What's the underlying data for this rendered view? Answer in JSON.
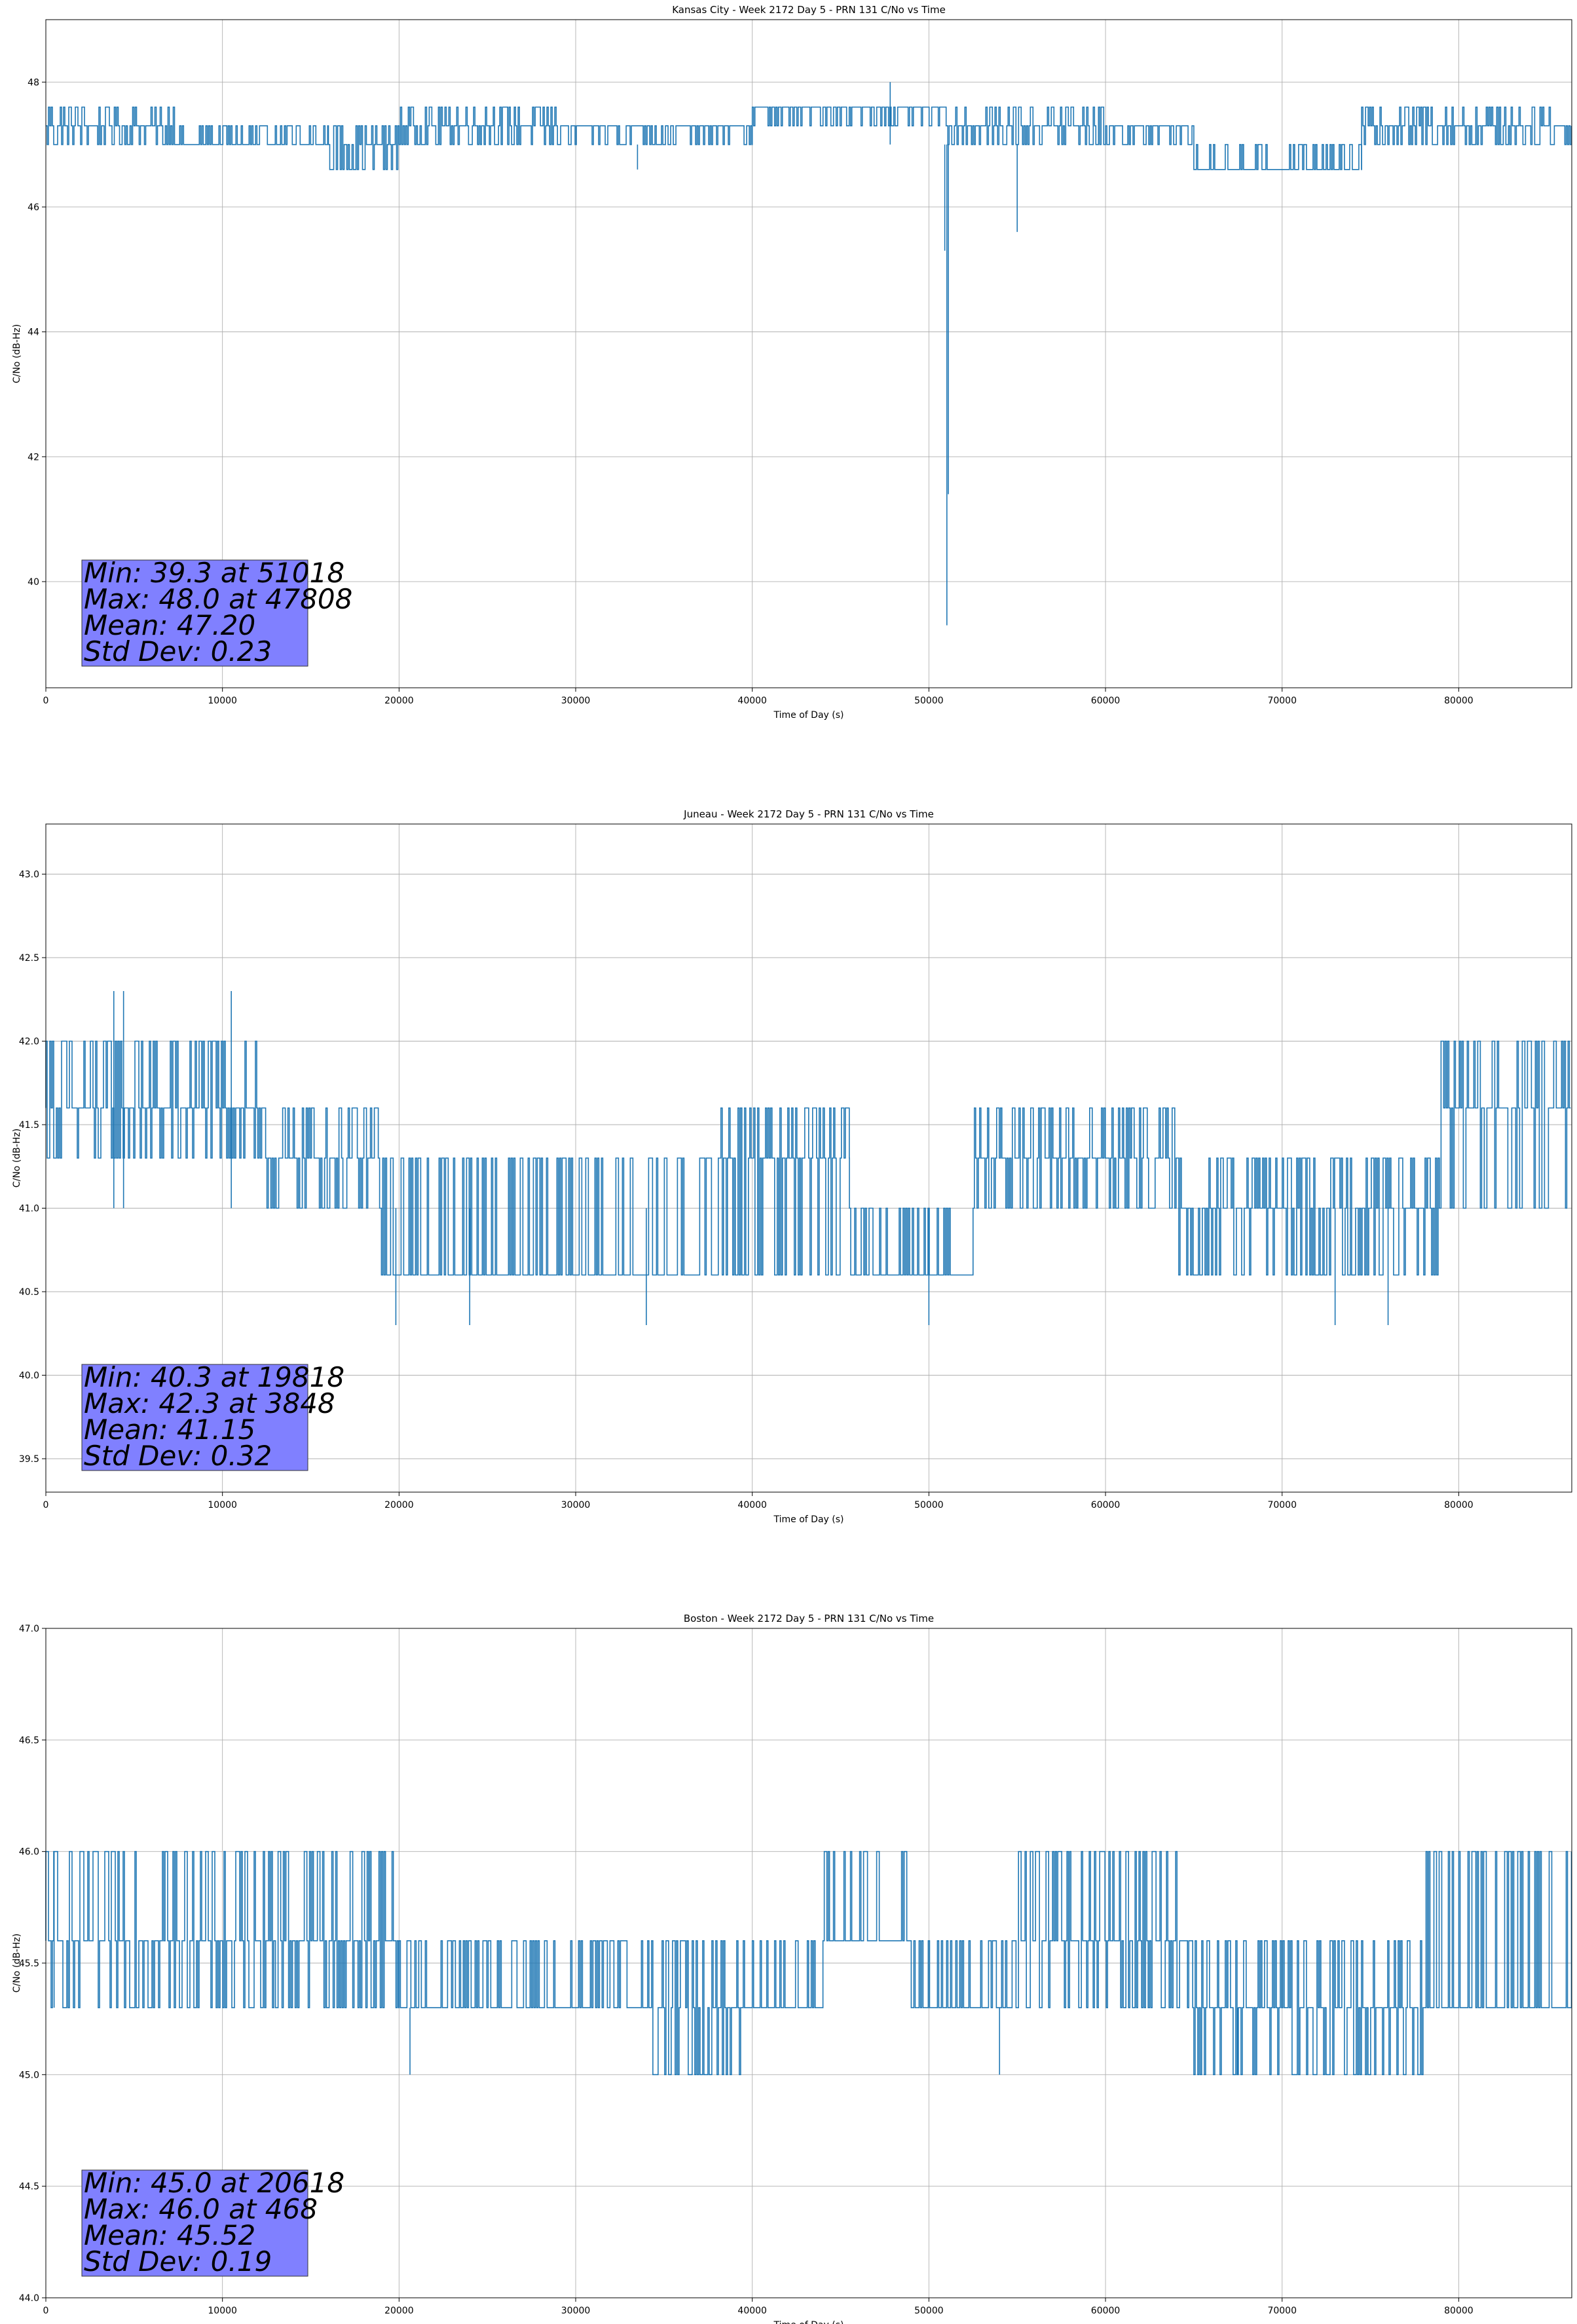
{
  "chart_data": [
    {
      "type": "line",
      "title": "Kansas City - Week 2172 Day 5 - PRN 131 C/No vs Time",
      "xlabel": "Time of Day (s)",
      "ylabel": "C/No (dB-Hz)",
      "xlim": [
        0,
        86400
      ],
      "ylim": [
        38.3,
        49.0
      ],
      "xticks": [
        0,
        10000,
        20000,
        30000,
        40000,
        50000,
        60000,
        70000,
        80000
      ],
      "yticks": [
        "40",
        "42",
        "44",
        "46",
        "48"
      ],
      "grid": true,
      "color": "#1f77b4",
      "levels": [
        46.6,
        47.0,
        47.3,
        47.6
      ],
      "regimes": [
        {
          "x": [
            0,
            1000
          ],
          "base": 47.3,
          "lo": 47.0,
          "hi": 47.6
        },
        {
          "x": [
            1000,
            3800
          ],
          "base": 47.3,
          "lo": 47.0,
          "hi": 47.6
        },
        {
          "x": [
            3800,
            7500
          ],
          "base": 47.3,
          "lo": 47.0,
          "hi": 47.6
        },
        {
          "x": [
            7500,
            16000
          ],
          "base": 47.0,
          "lo": 47.0,
          "hi": 47.3
        },
        {
          "x": [
            16000,
            20000
          ],
          "base": 47.0,
          "lo": 46.6,
          "hi": 47.3
        },
        {
          "x": [
            20000,
            24000
          ],
          "base": 47.3,
          "lo": 47.0,
          "hi": 47.6
        },
        {
          "x": [
            24000,
            29000
          ],
          "base": 47.3,
          "lo": 47.0,
          "hi": 47.6
        },
        {
          "x": [
            29000,
            40000
          ],
          "base": 47.3,
          "lo": 47.0,
          "hi": 47.3
        },
        {
          "x": [
            40000,
            51000
          ],
          "base": 47.6,
          "lo": 47.3,
          "hi": 47.6
        },
        {
          "x": [
            51000,
            60000
          ],
          "base": 47.3,
          "lo": 47.0,
          "hi": 47.6
        },
        {
          "x": [
            60000,
            65000
          ],
          "base": 47.3,
          "lo": 47.0,
          "hi": 47.3
        },
        {
          "x": [
            65000,
            74500
          ],
          "base": 46.6,
          "lo": 46.6,
          "hi": 47.0
        },
        {
          "x": [
            74500,
            80000
          ],
          "base": 47.3,
          "lo": 47.0,
          "hi": 47.6
        },
        {
          "x": [
            80000,
            86400
          ],
          "base": 47.3,
          "lo": 47.0,
          "hi": 47.6
        }
      ],
      "spikes": [
        {
          "x": 47808,
          "y": 48.0
        },
        {
          "x": 51018,
          "y": 39.3
        },
        {
          "x": 51100,
          "y": 41.4
        },
        {
          "x": 50900,
          "y": 45.3
        },
        {
          "x": 55000,
          "y": 45.6
        },
        {
          "x": 33500,
          "y": 46.6
        }
      ],
      "stats": {
        "min": "Min: 39.3 at 51018",
        "max": "Max: 48.0 at 47808",
        "mean": "Mean: 47.20",
        "std": "Std Dev: 0.23"
      }
    },
    {
      "type": "line",
      "title": "Juneau - Week 2172 Day 5 - PRN 131 C/No vs Time",
      "xlabel": "Time of Day (s)",
      "ylabel": "C/No (dB-Hz)",
      "xlim": [
        0,
        86400
      ],
      "ylim": [
        39.3,
        43.3
      ],
      "xticks": [
        0,
        10000,
        20000,
        30000,
        40000,
        50000,
        60000,
        70000,
        80000
      ],
      "yticks": [
        "39.5",
        "40.0",
        "40.5",
        "41.0",
        "41.5",
        "42.0",
        "42.5",
        "43.0"
      ],
      "grid": true,
      "color": "#1f77b4",
      "levels": [
        40.6,
        41.0,
        41.3,
        41.6
      ],
      "regimes": [
        {
          "x": [
            0,
            12000
          ],
          "base": 41.6,
          "lo": 41.3,
          "hi": 42.0
        },
        {
          "x": [
            12000,
            19000
          ],
          "base": 41.3,
          "lo": 41.0,
          "hi": 41.6
        },
        {
          "x": [
            19000,
            38000
          ],
          "base": 40.6,
          "lo": 40.6,
          "hi": 41.3
        },
        {
          "x": [
            38000,
            45500
          ],
          "base": 41.3,
          "lo": 40.6,
          "hi": 41.6
        },
        {
          "x": [
            45500,
            52500
          ],
          "base": 40.6,
          "lo": 40.6,
          "hi": 41.0
        },
        {
          "x": [
            52500,
            64000
          ],
          "base": 41.3,
          "lo": 41.0,
          "hi": 41.6
        },
        {
          "x": [
            64000,
            79000
          ],
          "base": 41.0,
          "lo": 40.6,
          "hi": 41.3
        },
        {
          "x": [
            79000,
            86400
          ],
          "base": 41.6,
          "lo": 41.0,
          "hi": 42.0
        }
      ],
      "spikes": [
        {
          "x": 3848,
          "y": 42.3
        },
        {
          "x": 4400,
          "y": 42.3
        },
        {
          "x": 10500,
          "y": 42.3
        },
        {
          "x": 19818,
          "y": 40.3
        },
        {
          "x": 24000,
          "y": 40.3
        },
        {
          "x": 34000,
          "y": 40.3
        },
        {
          "x": 50000,
          "y": 40.3
        },
        {
          "x": 73000,
          "y": 40.3
        },
        {
          "x": 76000,
          "y": 40.3
        }
      ],
      "stats": {
        "min": "Min: 40.3 at 19818",
        "max": "Max: 42.3 at 3848",
        "mean": "Mean: 41.15",
        "std": "Std Dev: 0.32"
      }
    },
    {
      "type": "line",
      "title": "Boston - Week 2172 Day 5 - PRN 131 C/No vs Time",
      "xlabel": "Time of Day (s)",
      "ylabel": "C/No (dB-Hz)",
      "xlim": [
        0,
        86400
      ],
      "ylim": [
        44.0,
        47.0
      ],
      "xticks": [
        0,
        10000,
        20000,
        30000,
        40000,
        50000,
        60000,
        70000,
        80000
      ],
      "yticks": [
        "44.0",
        "44.5",
        "45.0",
        "45.5",
        "46.0",
        "46.5",
        "47.0"
      ],
      "grid": true,
      "color": "#1f77b4",
      "levels": [
        45.0,
        45.3,
        45.6,
        46.0
      ],
      "regimes": [
        {
          "x": [
            0,
            13000
          ],
          "base": 45.6,
          "lo": 45.3,
          "hi": 46.0
        },
        {
          "x": [
            13000,
            20000
          ],
          "base": 45.6,
          "lo": 45.3,
          "hi": 46.0
        },
        {
          "x": [
            20000,
            34000
          ],
          "base": 45.3,
          "lo": 45.3,
          "hi": 45.6
        },
        {
          "x": [
            34000,
            40000
          ],
          "base": 45.3,
          "lo": 45.0,
          "hi": 45.6
        },
        {
          "x": [
            40000,
            44000
          ],
          "base": 45.3,
          "lo": 45.3,
          "hi": 45.6
        },
        {
          "x": [
            44000,
            49000
          ],
          "base": 45.6,
          "lo": 45.6,
          "hi": 46.0
        },
        {
          "x": [
            49000,
            55000
          ],
          "base": 45.3,
          "lo": 45.3,
          "hi": 45.6
        },
        {
          "x": [
            55000,
            65000
          ],
          "base": 45.6,
          "lo": 45.3,
          "hi": 46.0
        },
        {
          "x": [
            65000,
            78000
          ],
          "base": 45.3,
          "lo": 45.0,
          "hi": 45.6
        },
        {
          "x": [
            78000,
            86400
          ],
          "base": 45.3,
          "lo": 45.3,
          "hi": 46.0
        }
      ],
      "spikes": [
        {
          "x": 468,
          "y": 46.0
        },
        {
          "x": 20618,
          "y": 45.0
        },
        {
          "x": 54000,
          "y": 45.0
        },
        {
          "x": 67500,
          "y": 45.0
        }
      ],
      "stats": {
        "min": "Min: 45.0 at 20618",
        "max": "Max: 46.0 at 468",
        "mean": "Mean: 45.52",
        "std": "Std Dev: 0.19"
      }
    }
  ]
}
